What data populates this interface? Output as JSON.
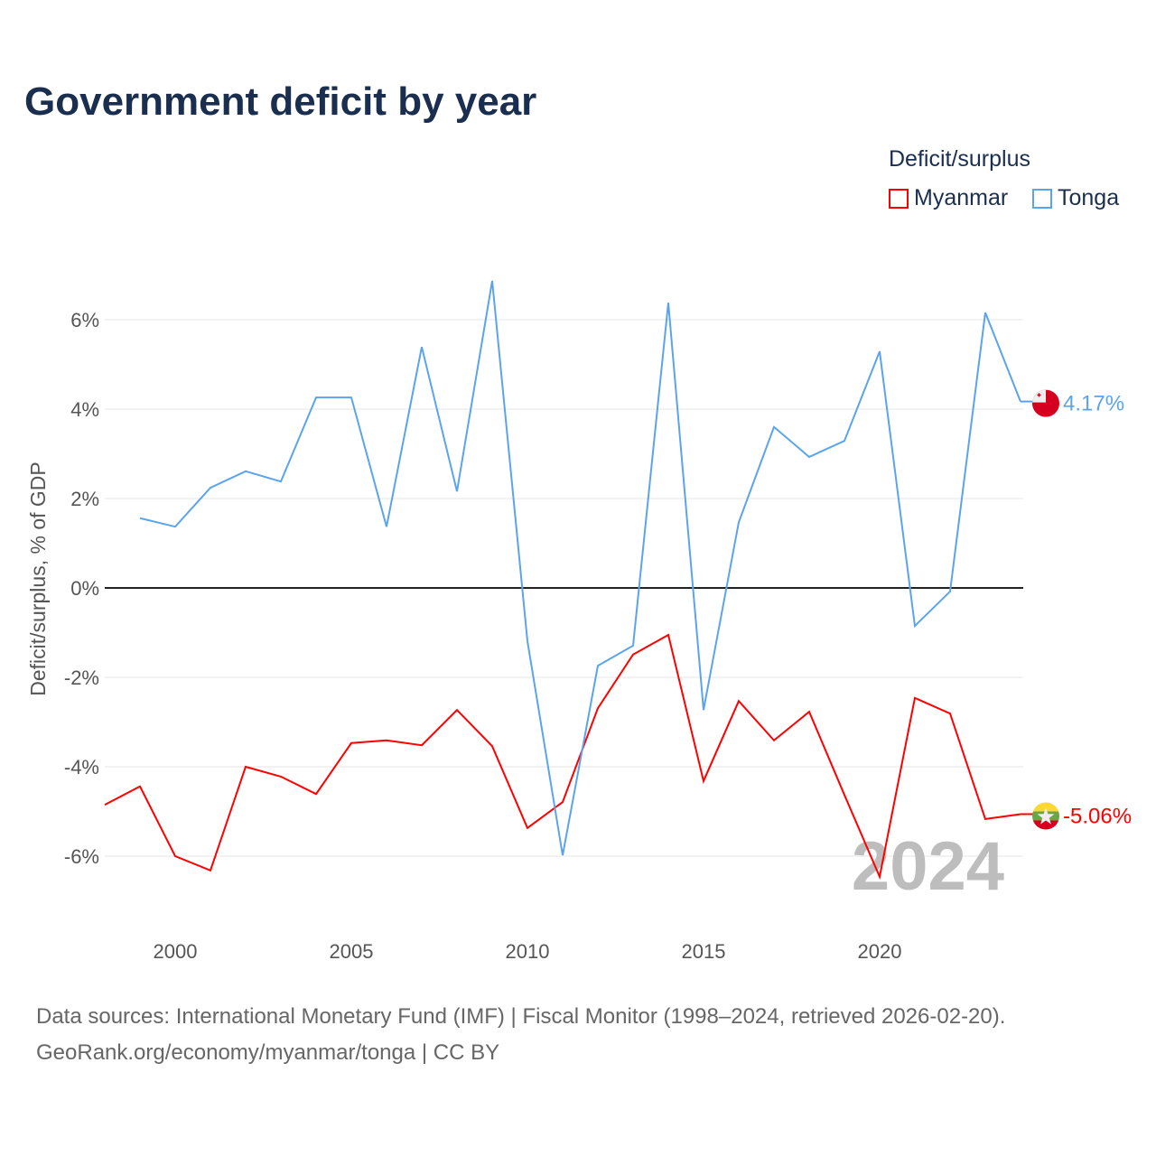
{
  "title": "Government deficit by year",
  "footer": {
    "line1": "Data sources: International Monetary Fund (IMF) | Fiscal Monitor (1998–2024, retrieved 2026-02-20).",
    "line2": "GeoRank.org/economy/myanmar/tonga | CC BY"
  },
  "chart_data": {
    "type": "line",
    "title": "Government deficit by year",
    "ylabel": "Deficit/surplus, % of GDP",
    "xlabel": "",
    "xlim": [
      1998,
      2024
    ],
    "ylim": [
      -7.5,
      7.5
    ],
    "yticks": [
      6,
      4,
      2,
      0,
      -2,
      -4,
      -6
    ],
    "ytick_labels": [
      "6%",
      "4%",
      "2%",
      "0%",
      "-2%",
      "-4%",
      "-6%"
    ],
    "xticks": [
      2000,
      2005,
      2010,
      2015,
      2020
    ],
    "xtick_labels": [
      "2000",
      "2005",
      "2010",
      "2015",
      "2020"
    ],
    "grid": true,
    "legend_title": "Deficit/surplus",
    "legend_position": "top-right",
    "year_watermark": "2024",
    "series": [
      {
        "name": "Myanmar",
        "color": "#ff0000",
        "end_label": "-5.06%",
        "flag": "myanmar-flag",
        "x": [
          1998,
          1999,
          2000,
          2001,
          2002,
          2003,
          2004,
          2005,
          2006,
          2007,
          2008,
          2009,
          2010,
          2011,
          2012,
          2013,
          2014,
          2015,
          2016,
          2017,
          2018,
          2019,
          2020,
          2021,
          2022,
          2023,
          2024
        ],
        "values": [
          -4.85,
          -4.44,
          -6.0,
          -6.32,
          -4.0,
          -4.22,
          -4.61,
          -3.47,
          -3.41,
          -3.52,
          -2.73,
          -3.54,
          -5.37,
          -4.79,
          -2.69,
          -1.49,
          -1.05,
          -4.32,
          -2.53,
          -3.41,
          -2.77,
          -4.63,
          -6.46,
          -2.46,
          -2.81,
          -5.17,
          -5.06
        ]
      },
      {
        "name": "Tonga",
        "color": "#5ba4ec",
        "end_label": "4.17%",
        "flag": "tonga-flag",
        "x": [
          1999,
          2000,
          2001,
          2002,
          2003,
          2004,
          2005,
          2006,
          2007,
          2008,
          2009,
          2010,
          2011,
          2012,
          2013,
          2014,
          2015,
          2016,
          2017,
          2018,
          2019,
          2020,
          2021,
          2022,
          2023,
          2024
        ],
        "values": [
          1.56,
          1.37,
          2.24,
          2.61,
          2.38,
          4.26,
          4.26,
          1.37,
          5.39,
          2.16,
          6.87,
          -1.19,
          -5.98,
          -1.74,
          -1.29,
          6.38,
          -2.73,
          1.47,
          3.6,
          2.93,
          3.29,
          5.29,
          -0.85,
          -0.08,
          6.16,
          4.17
        ]
      }
    ]
  }
}
